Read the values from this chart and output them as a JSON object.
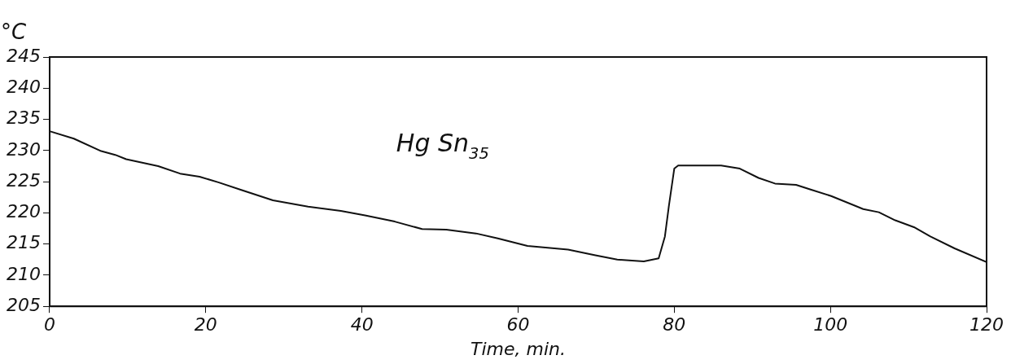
{
  "chart_data": {
    "type": "line",
    "xlabel": "Time, min.",
    "ylabel": "°C",
    "x": [
      0,
      3.1,
      6.6,
      8.4,
      9.8,
      13.9,
      16.7,
      19.2,
      21.6,
      24.7,
      28.6,
      33.1,
      37.3,
      40.4,
      44.2,
      47.7,
      50.8,
      54.6,
      57.4,
      61.2,
      66.4,
      69.9,
      72.7,
      76.1,
      78.0,
      78.8,
      79.3,
      80.0,
      80.5,
      86.0,
      88.4,
      90.8,
      92.9,
      95.6,
      97.3,
      100.1,
      104.2,
      106.2,
      108.3,
      110.7,
      112.8,
      115.9,
      120
    ],
    "series": [
      {
        "name": "Hg Sn$_{35}$",
        "color": "#111111",
        "values": [
          233.1,
          231.9,
          229.9,
          229.3,
          228.6,
          227.5,
          226.3,
          225.8,
          224.9,
          223.6,
          222.0,
          221.0,
          220.3,
          219.6,
          218.6,
          217.4,
          217.3,
          216.7,
          215.9,
          214.7,
          214.1,
          213.2,
          212.5,
          212.2,
          212.7,
          216.2,
          221.0,
          227.1,
          227.6,
          227.6,
          227.1,
          225.6,
          224.7,
          224.5,
          223.8,
          222.7,
          220.6,
          220.1,
          218.8,
          217.7,
          216.2,
          214.3,
          212.1
        ]
      }
    ],
    "xlim": [
      0,
      120
    ],
    "xticks": [
      0,
      20,
      40,
      60,
      80,
      100,
      120
    ],
    "ylim": [
      205,
      245
    ],
    "yticks": [
      205,
      210,
      215,
      220,
      225,
      230,
      235,
      240,
      245
    ],
    "grid": false,
    "legend": false,
    "marker": "none",
    "line_style": "solid"
  }
}
